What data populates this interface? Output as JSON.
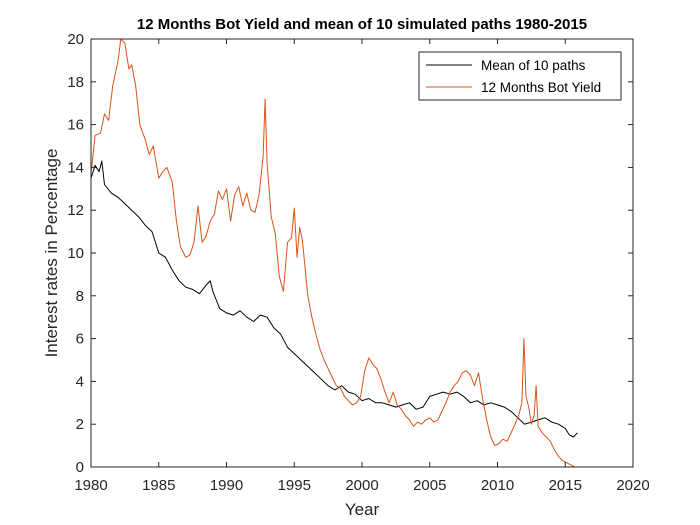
{
  "chart_data": {
    "type": "line",
    "title": "12 Months Bot Yield and mean of 10 simulated paths 1980-2015",
    "xlabel": "Year",
    "ylabel": "Interest rates in Percentage",
    "xlim": [
      1980,
      2020
    ],
    "ylim": [
      0,
      20
    ],
    "xticks": [
      1980,
      1985,
      1990,
      1995,
      2000,
      2005,
      2010,
      2015,
      2020
    ],
    "yticks": [
      0,
      2,
      4,
      6,
      8,
      10,
      12,
      14,
      16,
      18,
      20
    ],
    "grid": false,
    "legend_position": "top-right",
    "series": [
      {
        "name": "Mean of 10 paths",
        "color": "#000000",
        "x": [
          1980.0,
          1980.3,
          1980.6,
          1980.8,
          1981.0,
          1981.5,
          1982.0,
          1982.5,
          1983.0,
          1983.5,
          1984.0,
          1984.5,
          1985.0,
          1985.5,
          1986.0,
          1986.5,
          1987.0,
          1987.5,
          1988.0,
          1988.5,
          1988.8,
          1989.0,
          1989.5,
          1990.0,
          1990.5,
          1991.0,
          1991.5,
          1992.0,
          1992.5,
          1993.0,
          1993.5,
          1994.0,
          1994.5,
          1995.0,
          1995.5,
          1996.0,
          1996.5,
          1997.0,
          1997.5,
          1998.0,
          1998.5,
          1999.0,
          1999.5,
          2000.0,
          2000.5,
          2001.0,
          2001.5,
          2002.0,
          2002.5,
          2003.0,
          2003.5,
          2004.0,
          2004.5,
          2005.0,
          2005.5,
          2006.0,
          2006.5,
          2007.0,
          2007.5,
          2008.0,
          2008.5,
          2009.0,
          2009.5,
          2010.0,
          2010.5,
          2011.0,
          2011.5,
          2012.0,
          2012.5,
          2013.0,
          2013.5,
          2014.0,
          2014.5,
          2015.0,
          2015.3,
          2015.6,
          2015.9
        ],
        "y": [
          13.5,
          14.1,
          13.8,
          14.3,
          13.2,
          12.8,
          12.6,
          12.3,
          12.0,
          11.7,
          11.3,
          11.0,
          10.0,
          9.8,
          9.2,
          8.7,
          8.4,
          8.3,
          8.1,
          8.5,
          8.7,
          8.2,
          7.4,
          7.2,
          7.1,
          7.3,
          7.0,
          6.8,
          7.1,
          7.0,
          6.5,
          6.2,
          5.6,
          5.3,
          5.0,
          4.7,
          4.4,
          4.1,
          3.8,
          3.6,
          3.8,
          3.5,
          3.4,
          3.1,
          3.2,
          3.0,
          3.0,
          2.9,
          2.8,
          2.9,
          3.0,
          2.7,
          2.8,
          3.3,
          3.4,
          3.5,
          3.4,
          3.5,
          3.3,
          3.0,
          3.1,
          2.9,
          3.0,
          2.9,
          2.8,
          2.6,
          2.3,
          2.0,
          2.1,
          2.2,
          2.3,
          2.1,
          2.0,
          1.8,
          1.5,
          1.4,
          1.6
        ]
      },
      {
        "name": "12 Months Bot Yield",
        "color": "#d95319",
        "x": [
          1980.0,
          1980.3,
          1980.7,
          1981.0,
          1981.3,
          1981.6,
          1982.0,
          1982.2,
          1982.5,
          1982.8,
          1983.0,
          1983.3,
          1983.6,
          1984.0,
          1984.3,
          1984.6,
          1985.0,
          1985.3,
          1985.6,
          1986.0,
          1986.3,
          1986.6,
          1987.0,
          1987.3,
          1987.6,
          1987.9,
          1988.2,
          1988.5,
          1988.8,
          1989.1,
          1989.4,
          1989.7,
          1990.0,
          1990.3,
          1990.6,
          1990.9,
          1991.2,
          1991.5,
          1991.8,
          1992.1,
          1992.4,
          1992.7,
          1992.85,
          1993.0,
          1993.3,
          1993.6,
          1993.9,
          1994.2,
          1994.5,
          1994.8,
          1995.0,
          1995.2,
          1995.4,
          1995.6,
          1995.8,
          1996.0,
          1996.3,
          1996.6,
          1996.9,
          1997.2,
          1997.5,
          1997.8,
          1998.1,
          1998.4,
          1998.7,
          1999.0,
          1999.3,
          1999.6,
          1999.9,
          2000.2,
          2000.5,
          2000.8,
          2001.1,
          2001.4,
          2001.7,
          2002.0,
          2002.3,
          2002.6,
          2002.9,
          2003.2,
          2003.5,
          2003.8,
          2004.1,
          2004.4,
          2004.7,
          2005.0,
          2005.3,
          2005.6,
          2005.9,
          2006.2,
          2006.5,
          2006.8,
          2007.1,
          2007.4,
          2007.7,
          2008.0,
          2008.3,
          2008.6,
          2008.9,
          2009.2,
          2009.5,
          2009.8,
          2010.1,
          2010.4,
          2010.7,
          2011.0,
          2011.3,
          2011.6,
          2011.8,
          2011.95,
          2012.1,
          2012.3,
          2012.5,
          2012.7,
          2012.85,
          2013.0,
          2013.3,
          2013.6,
          2013.9,
          2014.2,
          2014.5,
          2014.8,
          2015.1,
          2015.4,
          2015.7
        ],
        "y": [
          13.7,
          15.5,
          15.6,
          16.5,
          16.2,
          17.8,
          19.0,
          20.0,
          19.8,
          18.6,
          18.8,
          17.8,
          16.0,
          15.3,
          14.6,
          15.0,
          13.5,
          13.8,
          14.0,
          13.3,
          11.5,
          10.3,
          9.8,
          9.9,
          10.5,
          12.2,
          10.5,
          10.8,
          11.5,
          11.8,
          12.9,
          12.5,
          13.0,
          11.5,
          12.7,
          13.1,
          12.2,
          12.8,
          12.0,
          11.9,
          12.7,
          14.5,
          17.2,
          14.2,
          11.7,
          10.9,
          8.9,
          8.2,
          10.5,
          10.7,
          12.1,
          9.8,
          11.2,
          10.6,
          9.3,
          8.0,
          7.0,
          6.2,
          5.5,
          5.0,
          4.6,
          4.2,
          3.8,
          3.7,
          3.3,
          3.1,
          2.9,
          3.0,
          3.3,
          4.5,
          5.1,
          4.8,
          4.6,
          4.1,
          3.5,
          3.0,
          3.5,
          2.9,
          2.7,
          2.4,
          2.2,
          1.9,
          2.1,
          2.0,
          2.2,
          2.3,
          2.1,
          2.2,
          2.6,
          3.0,
          3.5,
          3.8,
          4.0,
          4.4,
          4.5,
          4.3,
          3.8,
          4.4,
          3.2,
          2.2,
          1.4,
          1.0,
          1.1,
          1.3,
          1.2,
          1.6,
          2.0,
          2.5,
          3.0,
          6.0,
          3.3,
          2.8,
          2.0,
          2.4,
          3.8,
          1.9,
          1.6,
          1.4,
          1.2,
          0.8,
          0.5,
          0.3,
          0.2,
          0.1,
          0.0
        ]
      }
    ]
  }
}
